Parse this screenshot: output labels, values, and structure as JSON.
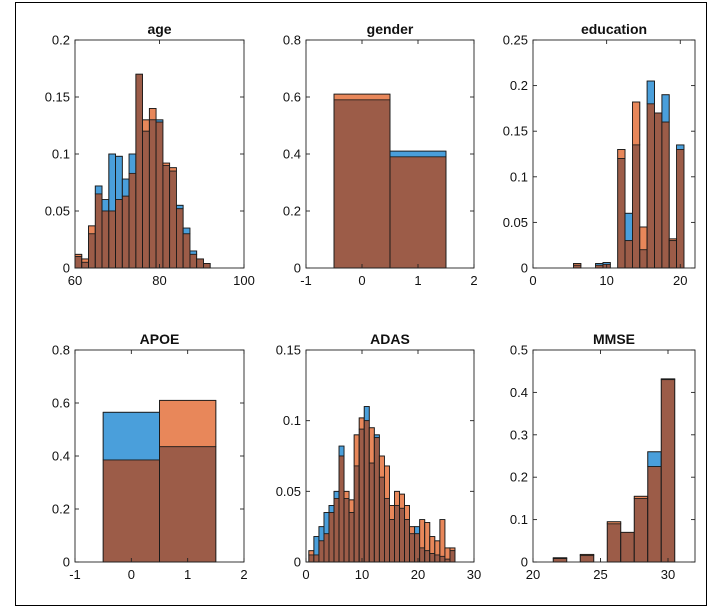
{
  "colors": {
    "blue": "#4a9fdb",
    "orange": "#e8875a",
    "overlap": "#9c5c48",
    "edge": "#1a1a1a"
  },
  "chart_data": [
    {
      "type": "bar",
      "title": "age",
      "xlim": [
        60,
        100
      ],
      "ylim": [
        0,
        0.2
      ],
      "xticks": [
        "60",
        "80",
        "100"
      ],
      "xtick_values": [
        60,
        80,
        100
      ],
      "yticks": [
        "0",
        "0.05",
        "0.1",
        "0.15",
        "0.2"
      ],
      "ytick_values": [
        0,
        0.05,
        0.1,
        0.15,
        0.2
      ],
      "bin_width": 1.6,
      "bin_starts": [
        60.0,
        61.6,
        63.2,
        64.8,
        66.4,
        68.0,
        69.6,
        71.2,
        72.8,
        74.4,
        76.0,
        77.6,
        79.2,
        80.8,
        82.4,
        84.0,
        85.6,
        87.2,
        88.8,
        90.4
      ],
      "series": [
        {
          "color": "blue",
          "values": [
            0.01,
            0.005,
            0.03,
            0.072,
            0.06,
            0.1,
            0.098,
            0.078,
            0.1,
            0.17,
            0.12,
            0.13,
            0.13,
            0.09,
            0.085,
            0.055,
            0.035,
            0.015,
            0.008,
            0.004
          ]
        },
        {
          "color": "orange",
          "values": [
            0.012,
            0.008,
            0.037,
            0.065,
            0.05,
            0.05,
            0.06,
            0.063,
            0.083,
            0.17,
            0.13,
            0.14,
            0.128,
            0.092,
            0.088,
            0.052,
            0.03,
            0.012,
            0.008,
            0.004
          ]
        }
      ]
    },
    {
      "type": "bar",
      "title": "gender",
      "xlim": [
        -1,
        2
      ],
      "ylim": [
        0,
        0.8
      ],
      "xticks": [
        "-1",
        "0",
        "1",
        "2"
      ],
      "xtick_values": [
        -1,
        0,
        1,
        2
      ],
      "yticks": [
        "0",
        "0.2",
        "0.4",
        "0.6",
        "0.8"
      ],
      "ytick_values": [
        0,
        0.2,
        0.4,
        0.6,
        0.8
      ],
      "bin_width": 1,
      "bin_starts": [
        -0.5,
        0.5
      ],
      "series": [
        {
          "color": "blue",
          "values": [
            0.59,
            0.41
          ]
        },
        {
          "color": "orange",
          "values": [
            0.61,
            0.39
          ]
        }
      ]
    },
    {
      "type": "bar",
      "title": "education",
      "xlim": [
        0,
        22
      ],
      "ylim": [
        0,
        0.25
      ],
      "xticks": [
        "0",
        "10",
        "20"
      ],
      "xtick_values": [
        0,
        10,
        20
      ],
      "yticks": [
        "0",
        "0.05",
        "0.1",
        "0.15",
        "0.2",
        "0.25"
      ],
      "ytick_values": [
        0,
        0.05,
        0.1,
        0.15,
        0.2,
        0.25
      ],
      "bin_width": 1,
      "bin_starts": [
        5.5,
        6.5,
        7.5,
        8.5,
        9.5,
        10.5,
        11.5,
        12.5,
        13.5,
        14.5,
        15.5,
        16.5,
        17.5,
        18.5,
        19.5
      ],
      "series": [
        {
          "color": "blue",
          "values": [
            0.003,
            0,
            0,
            0.005,
            0.006,
            0,
            0.12,
            0.06,
            0.135,
            0.02,
            0.205,
            0.17,
            0.19,
            0.03,
            0.135
          ]
        },
        {
          "color": "orange",
          "values": [
            0.005,
            0,
            0,
            0.003,
            0.004,
            0,
            0.13,
            0.03,
            0.182,
            0.045,
            0.18,
            0.17,
            0.16,
            0.032,
            0.13
          ]
        }
      ]
    },
    {
      "type": "bar",
      "title": "APOE",
      "xlim": [
        -1,
        2
      ],
      "ylim": [
        0,
        0.8
      ],
      "xticks": [
        "-1",
        "0",
        "1",
        "2"
      ],
      "xtick_values": [
        -1,
        0,
        1,
        2
      ],
      "yticks": [
        "0",
        "0.2",
        "0.4",
        "0.6",
        "0.8"
      ],
      "ytick_values": [
        0,
        0.2,
        0.4,
        0.6,
        0.8
      ],
      "bin_width": 1,
      "bin_starts": [
        -0.5,
        0.5
      ],
      "series": [
        {
          "color": "blue",
          "values": [
            0.565,
            0.435
          ]
        },
        {
          "color": "orange",
          "values": [
            0.385,
            0.61
          ]
        }
      ]
    },
    {
      "type": "bar",
      "title": "ADAS",
      "xlim": [
        0,
        30
      ],
      "ylim": [
        0,
        0.15
      ],
      "xticks": [
        "0",
        "10",
        "20",
        "30"
      ],
      "xtick_values": [
        0,
        10,
        20,
        30
      ],
      "yticks": [
        "0",
        "0.05",
        "0.1",
        "0.15"
      ],
      "ytick_values": [
        0,
        0.05,
        0.1,
        0.15
      ],
      "bin_width": 0.9,
      "bin_starts": [
        0.5,
        1.4,
        2.3,
        3.2,
        4.1,
        5.0,
        5.9,
        6.8,
        7.7,
        8.6,
        9.5,
        10.4,
        11.3,
        12.2,
        13.1,
        14.0,
        14.9,
        15.8,
        16.7,
        17.6,
        18.5,
        19.4,
        20.3,
        21.2,
        22.1,
        23.0,
        23.9,
        24.8,
        25.7
      ],
      "series": [
        {
          "color": "blue",
          "values": [
            0.005,
            0.018,
            0.025,
            0.035,
            0.04,
            0.05,
            0.082,
            0.045,
            0.035,
            0.068,
            0.094,
            0.11,
            0.07,
            0.09,
            0.06,
            0.045,
            0.03,
            0.04,
            0.038,
            0.03,
            0.02,
            0.025,
            0.01,
            0.008,
            0.006,
            0.005,
            0.004,
            0.002,
            0.008
          ]
        },
        {
          "color": "orange",
          "values": [
            0.008,
            0.005,
            0.015,
            0.02,
            0.035,
            0.045,
            0.075,
            0.05,
            0.044,
            0.09,
            0.102,
            0.1,
            0.095,
            0.088,
            0.075,
            0.068,
            0.04,
            0.05,
            0.048,
            0.04,
            0.025,
            0.02,
            0.03,
            0.028,
            0.018,
            0.015,
            0.03,
            0.01,
            0.01
          ]
        }
      ]
    },
    {
      "type": "bar",
      "title": "MMSE",
      "xlim": [
        20,
        32
      ],
      "ylim": [
        0,
        0.5
      ],
      "xticks": [
        "20",
        "25",
        "30"
      ],
      "xtick_values": [
        20,
        25,
        30
      ],
      "yticks": [
        "0",
        "0.1",
        "0.2",
        "0.3",
        "0.4",
        "0.5"
      ],
      "ytick_values": [
        0,
        0.1,
        0.2,
        0.3,
        0.4,
        0.5
      ],
      "bin_width": 1,
      "bin_starts": [
        21.5,
        22.5,
        23.5,
        24.5,
        25.5,
        26.5,
        27.5,
        28.5,
        29.5
      ],
      "series": [
        {
          "color": "blue",
          "values": [
            0.008,
            0,
            0.015,
            0,
            0.09,
            0.07,
            0.15,
            0.26,
            0.43
          ]
        },
        {
          "color": "orange",
          "values": [
            0.01,
            0,
            0.018,
            0,
            0.095,
            0.07,
            0.155,
            0.225,
            0.432
          ]
        }
      ]
    }
  ]
}
